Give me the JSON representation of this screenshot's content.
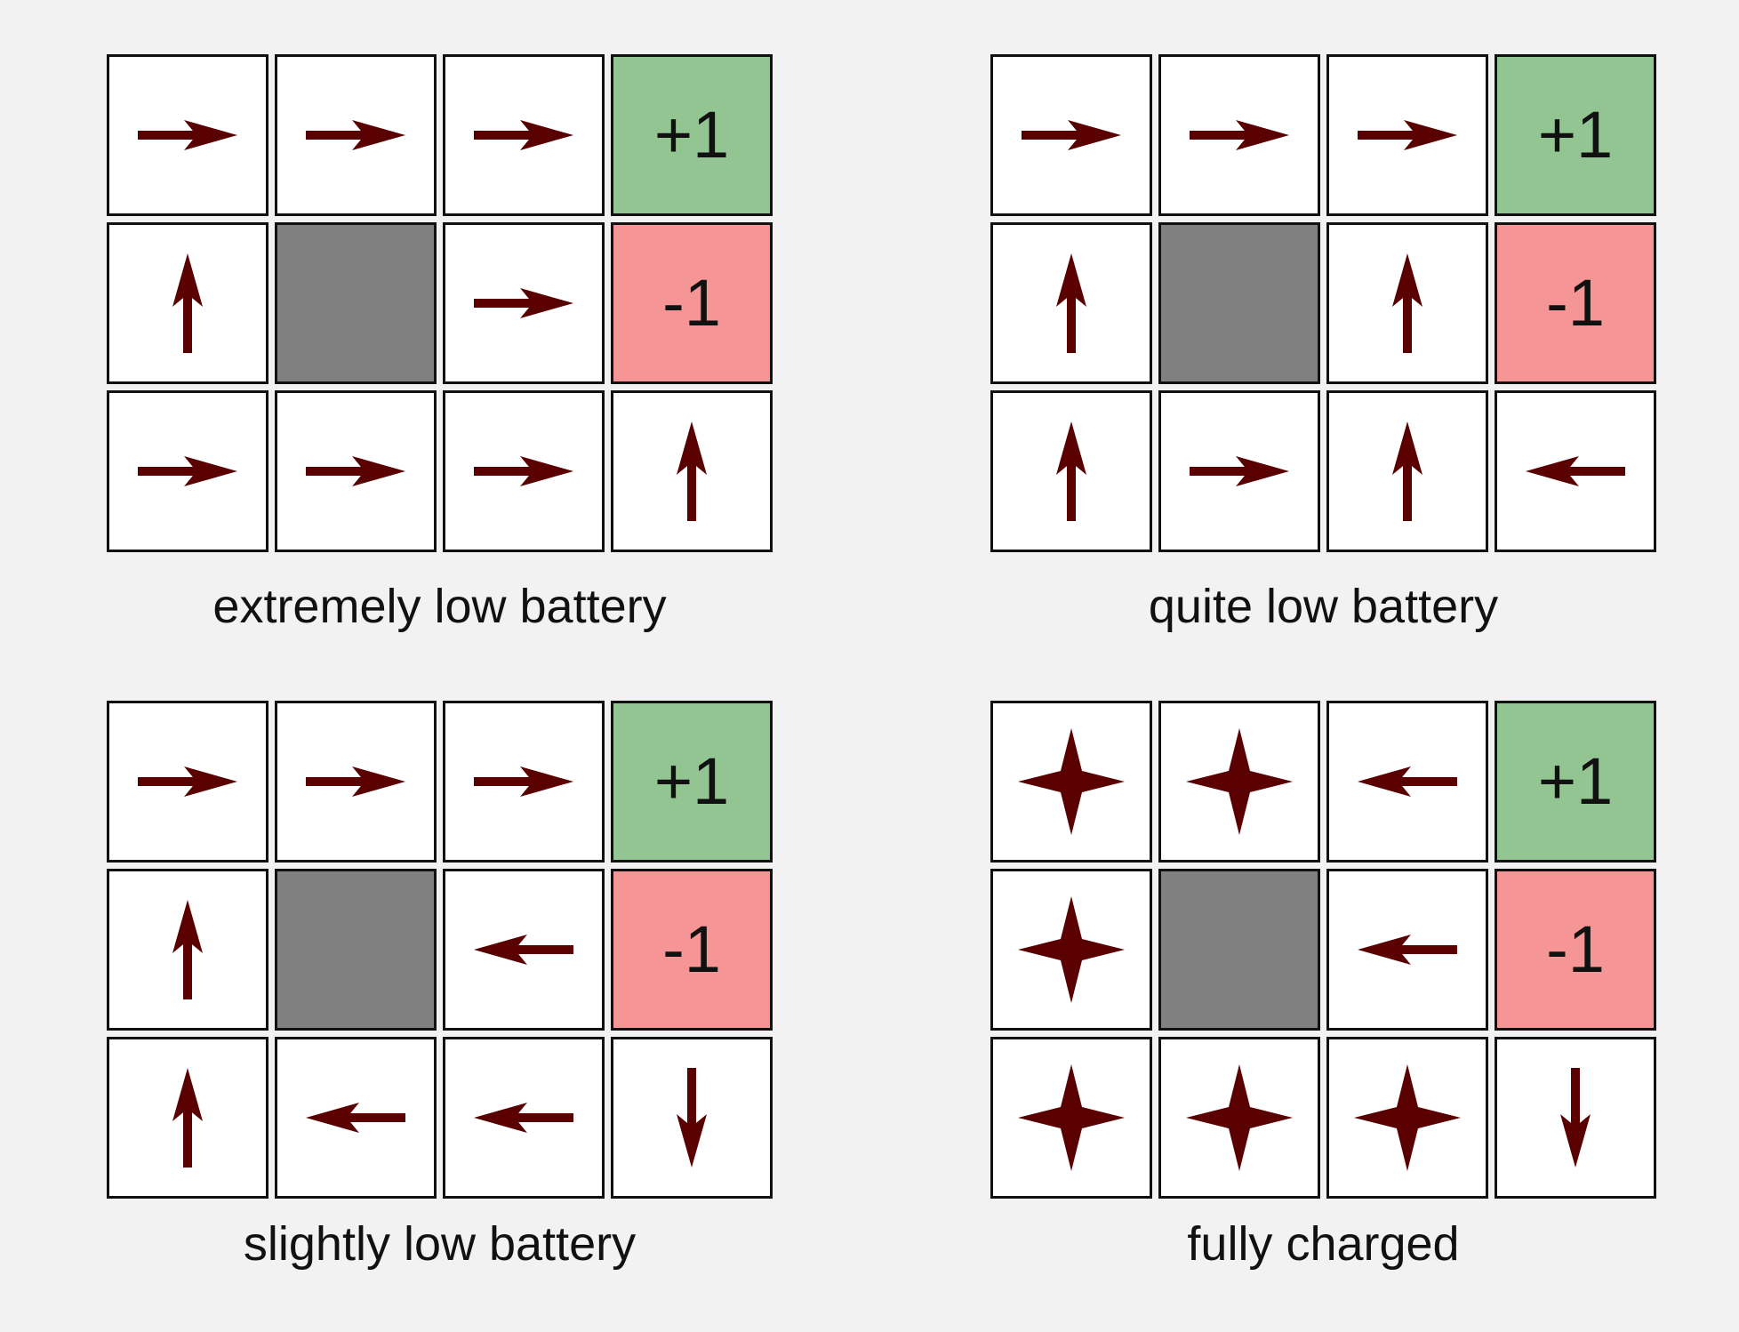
{
  "colors": {
    "background": "#f2f2f2",
    "goal": "#93c592",
    "pit": "#f69595",
    "wall": "#808080",
    "arrow": "#5a0000"
  },
  "panels": [
    {
      "caption": "extremely low battery",
      "cells": [
        [
          {
            "type": "policy",
            "action": "right"
          },
          {
            "type": "policy",
            "action": "right"
          },
          {
            "type": "policy",
            "action": "right"
          },
          {
            "type": "goal",
            "label": "+1"
          }
        ],
        [
          {
            "type": "policy",
            "action": "up"
          },
          {
            "type": "wall"
          },
          {
            "type": "policy",
            "action": "right"
          },
          {
            "type": "pit",
            "label": "-1"
          }
        ],
        [
          {
            "type": "policy",
            "action": "right"
          },
          {
            "type": "policy",
            "action": "right"
          },
          {
            "type": "policy",
            "action": "right"
          },
          {
            "type": "policy",
            "action": "up"
          }
        ]
      ]
    },
    {
      "caption": "quite low battery",
      "cells": [
        [
          {
            "type": "policy",
            "action": "right"
          },
          {
            "type": "policy",
            "action": "right"
          },
          {
            "type": "policy",
            "action": "right"
          },
          {
            "type": "goal",
            "label": "+1"
          }
        ],
        [
          {
            "type": "policy",
            "action": "up"
          },
          {
            "type": "wall"
          },
          {
            "type": "policy",
            "action": "up"
          },
          {
            "type": "pit",
            "label": "-1"
          }
        ],
        [
          {
            "type": "policy",
            "action": "up"
          },
          {
            "type": "policy",
            "action": "right"
          },
          {
            "type": "policy",
            "action": "up"
          },
          {
            "type": "policy",
            "action": "left"
          }
        ]
      ]
    },
    {
      "caption": "slightly low battery",
      "cells": [
        [
          {
            "type": "policy",
            "action": "right"
          },
          {
            "type": "policy",
            "action": "right"
          },
          {
            "type": "policy",
            "action": "right"
          },
          {
            "type": "goal",
            "label": "+1"
          }
        ],
        [
          {
            "type": "policy",
            "action": "up"
          },
          {
            "type": "wall"
          },
          {
            "type": "policy",
            "action": "left"
          },
          {
            "type": "pit",
            "label": "-1"
          }
        ],
        [
          {
            "type": "policy",
            "action": "up"
          },
          {
            "type": "policy",
            "action": "left"
          },
          {
            "type": "policy",
            "action": "left"
          },
          {
            "type": "policy",
            "action": "down"
          }
        ]
      ]
    },
    {
      "caption": "fully charged",
      "cells": [
        [
          {
            "type": "policy",
            "action": "any"
          },
          {
            "type": "policy",
            "action": "any"
          },
          {
            "type": "policy",
            "action": "left"
          },
          {
            "type": "goal",
            "label": "+1"
          }
        ],
        [
          {
            "type": "policy",
            "action": "any"
          },
          {
            "type": "wall"
          },
          {
            "type": "policy",
            "action": "left"
          },
          {
            "type": "pit",
            "label": "-1"
          }
        ],
        [
          {
            "type": "policy",
            "action": "any"
          },
          {
            "type": "policy",
            "action": "any"
          },
          {
            "type": "policy",
            "action": "any"
          },
          {
            "type": "policy",
            "action": "down"
          }
        ]
      ]
    }
  ]
}
